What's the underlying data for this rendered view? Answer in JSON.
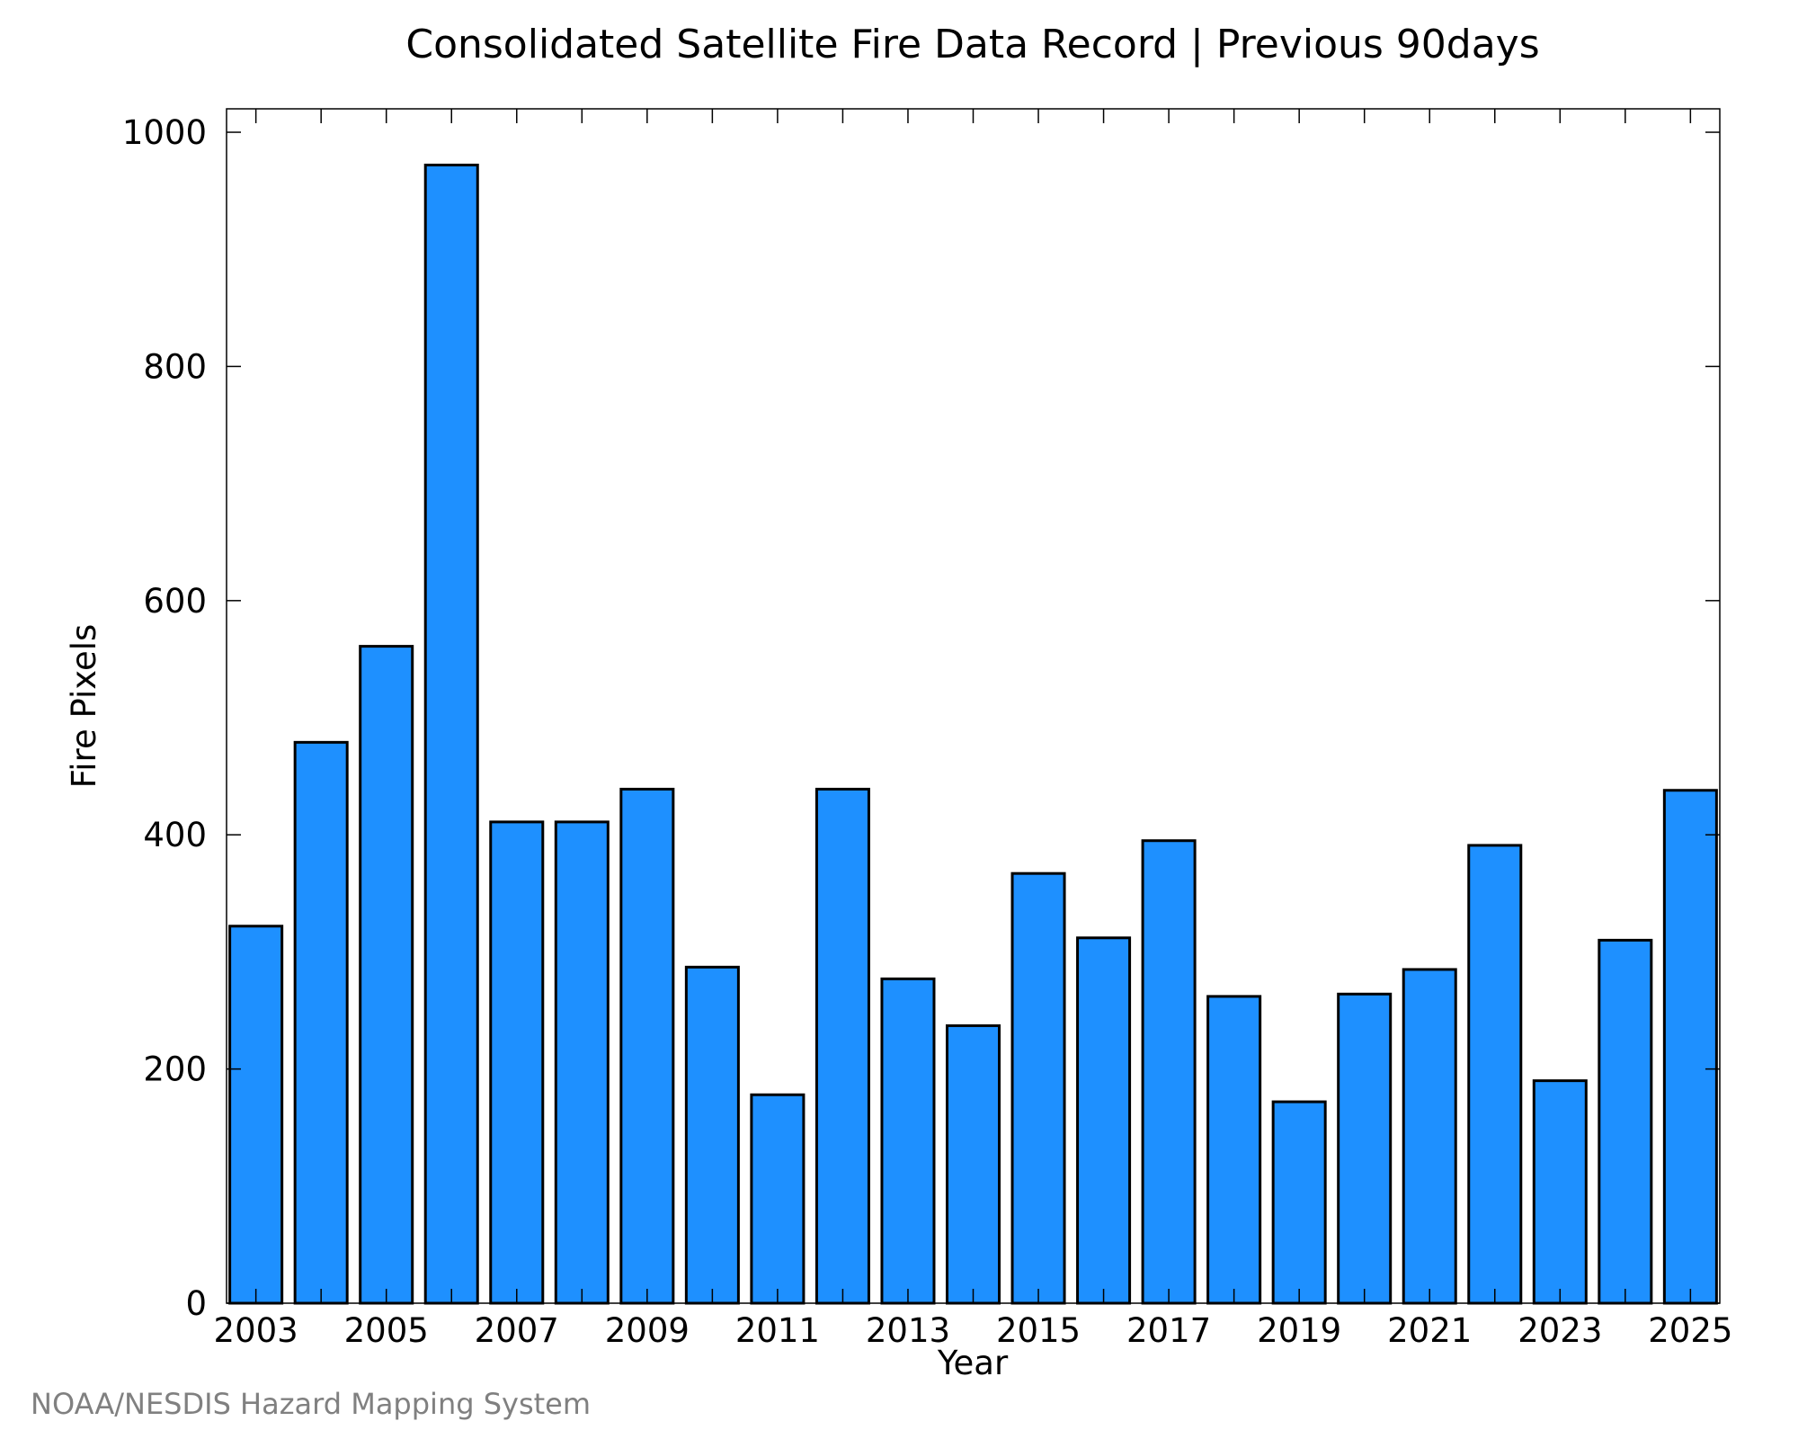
{
  "chart_data": {
    "type": "bar",
    "title": "Consolidated Satellite Fire Data Record | Previous 90days",
    "xlabel": "Year",
    "ylabel": "Fire Pixels",
    "categories": [
      "2003",
      "2004",
      "2005",
      "2006",
      "2007",
      "2008",
      "2009",
      "2010",
      "2011",
      "2012",
      "2013",
      "2014",
      "2015",
      "2016",
      "2017",
      "2018",
      "2019",
      "2020",
      "2021",
      "2022",
      "2023",
      "2024",
      "2025"
    ],
    "values": [
      322,
      479,
      561,
      972,
      411,
      411,
      439,
      287,
      178,
      439,
      277,
      237,
      367,
      312,
      395,
      262,
      172,
      264,
      285,
      391,
      190,
      310,
      438
    ],
    "xtick_labels": [
      "2003",
      "2005",
      "2007",
      "2009",
      "2011",
      "2013",
      "2015",
      "2017",
      "2019",
      "2021",
      "2023",
      "2025"
    ],
    "yticks": [
      0,
      200,
      400,
      600,
      800,
      1000
    ],
    "ylim": [
      0,
      1020
    ],
    "grid": false,
    "bar_color": "#1e90ff",
    "edge_color": "#000000"
  },
  "credit": "NOAA/NESDIS Hazard Mapping System"
}
